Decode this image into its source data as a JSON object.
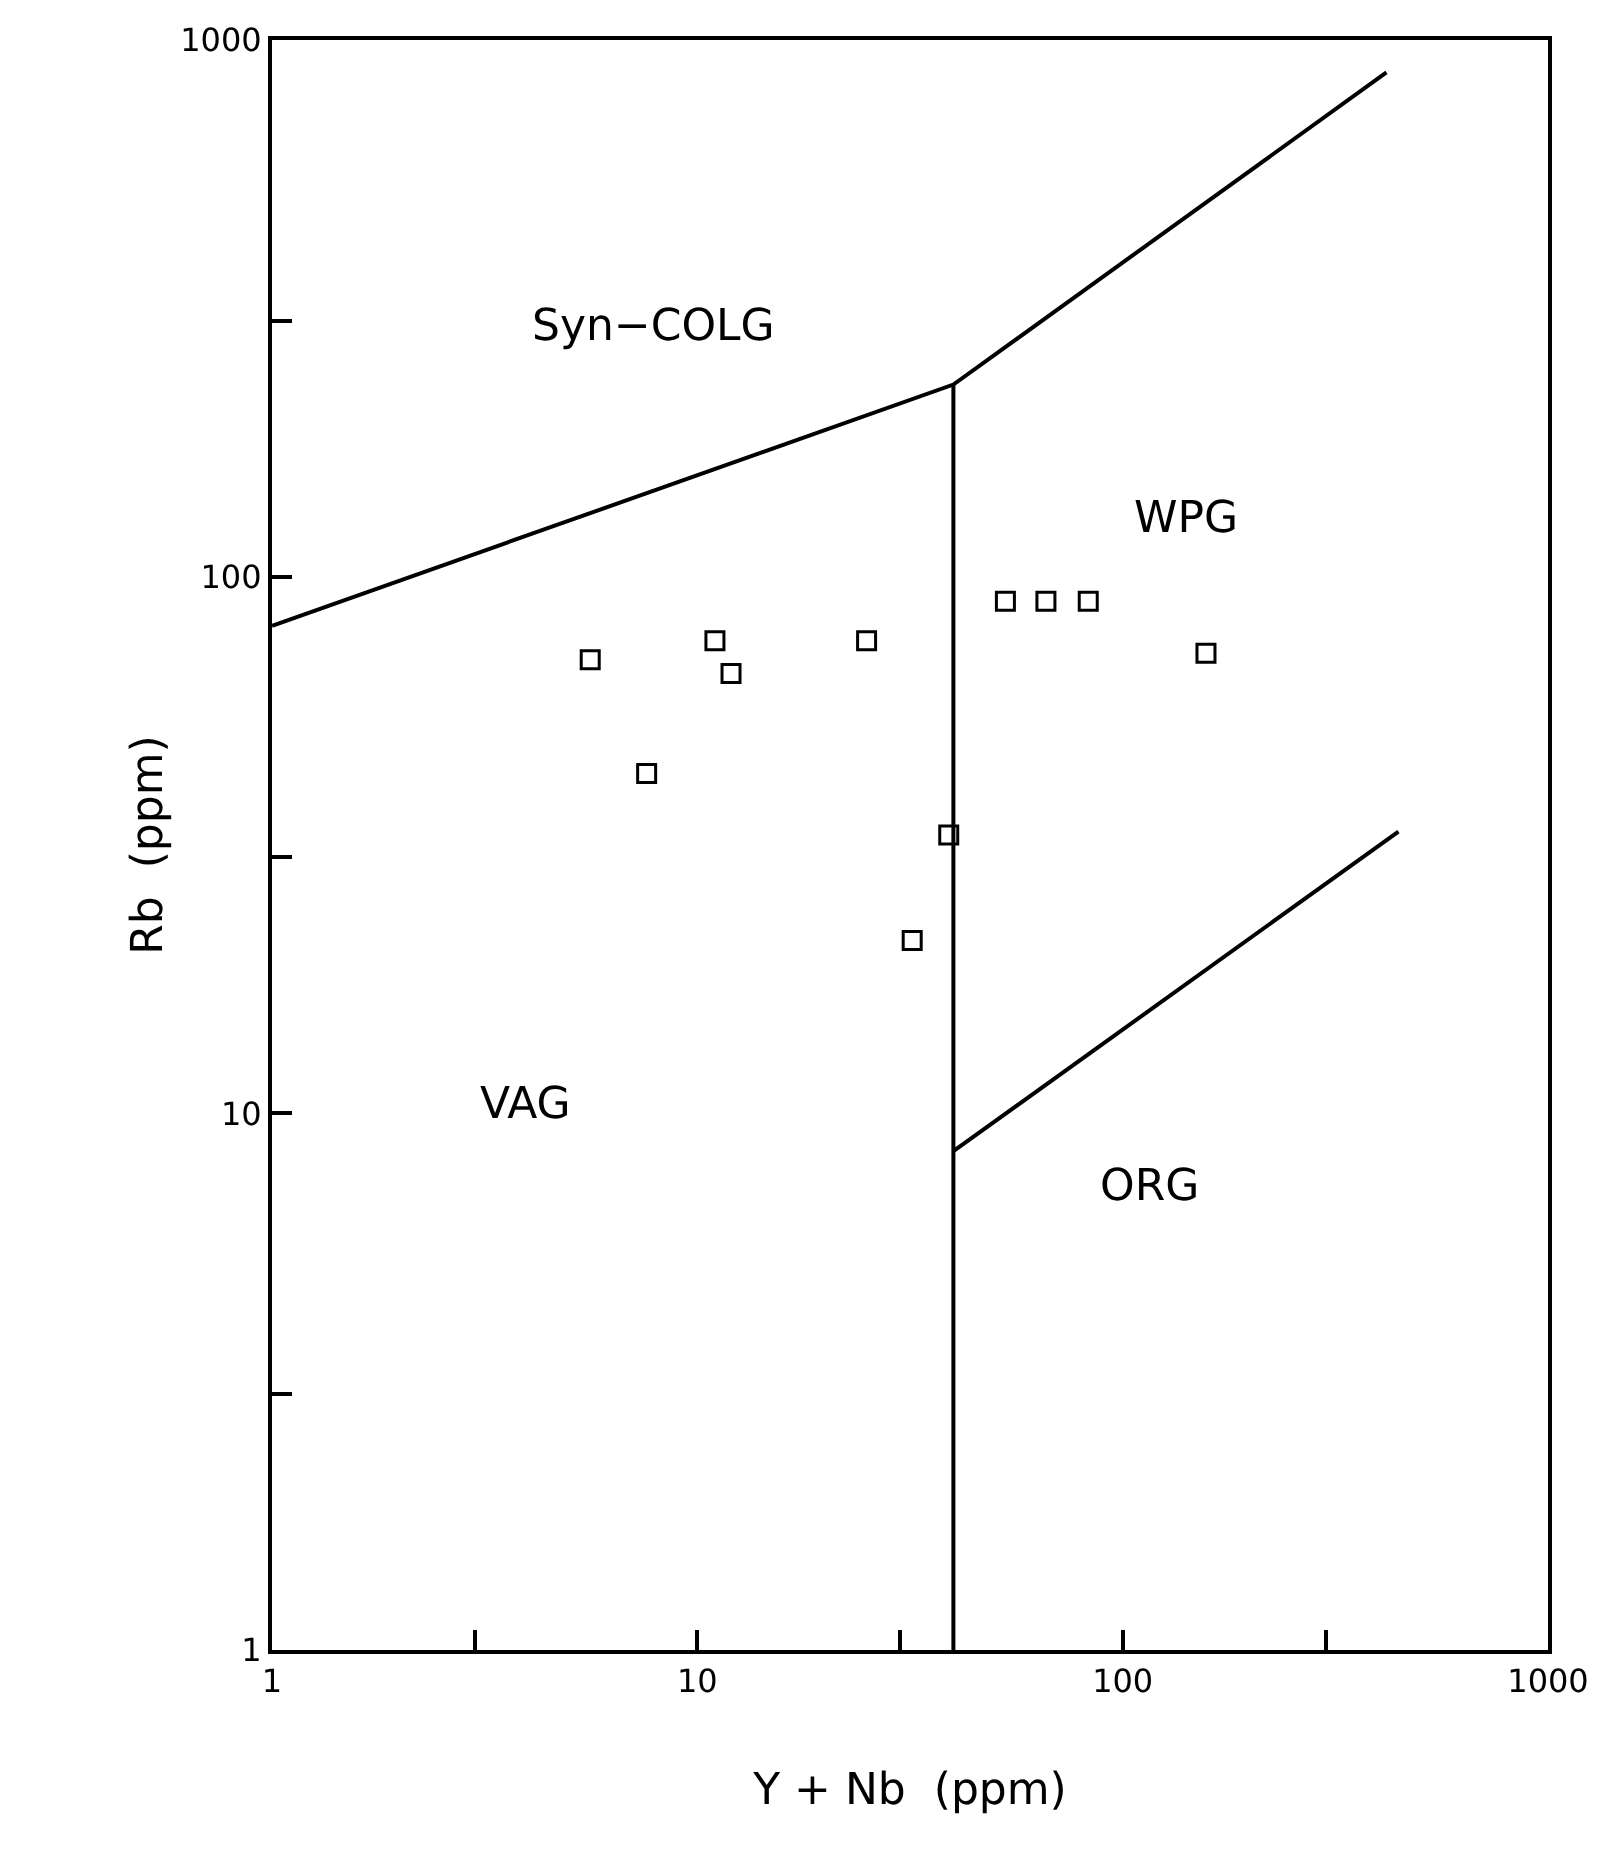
{
  "chart_data": {
    "type": "scatter",
    "xlabel": "Y + Nb  (ppm)",
    "ylabel": "Rb  (ppm)",
    "log": "xy",
    "grid": false,
    "legend": false,
    "xlim": [
      1,
      1000
    ],
    "ylim": [
      1,
      1000
    ],
    "xticks": [
      1,
      {
        "value": 3,
        "label": null
      },
      10,
      {
        "value": 30,
        "label": null
      },
      100,
      {
        "value": 300,
        "label": null
      },
      1000
    ],
    "yticks": [
      1,
      {
        "value": 3,
        "label": null
      },
      10,
      {
        "value": 30,
        "label": null
      },
      100,
      {
        "value": 300,
        "label": null
      },
      1000
    ],
    "series": [
      {
        "color": "#000000",
        "marker": "square",
        "x": [
          5.6,
          11,
          12,
          7.6,
          25,
          39,
          32,
          53,
          66,
          83,
          157
        ],
        "values": [
          70,
          76,
          66,
          43,
          76,
          33,
          21,
          90,
          90,
          90,
          72
        ]
      },
      {
        "type": "line",
        "color": "#000000",
        "marker": "none",
        "line_style": "solid",
        "x": [
          1,
          40,
          417
        ],
        "values": [
          81,
          228,
          870
        ]
      },
      {
        "type": "line",
        "color": "#000000",
        "marker": "none",
        "line_style": "solid",
        "x": [
          40,
          40
        ],
        "values": [
          1,
          228
        ]
      },
      {
        "type": "line",
        "color": "#000000",
        "marker": "none",
        "line_style": "solid",
        "x": [
          40,
          445
        ],
        "values": [
          8.5,
          33.5
        ]
      }
    ],
    "annotations": [
      "Syn−COLG",
      "WPG",
      "VAG",
      "ORG"
    ]
  }
}
